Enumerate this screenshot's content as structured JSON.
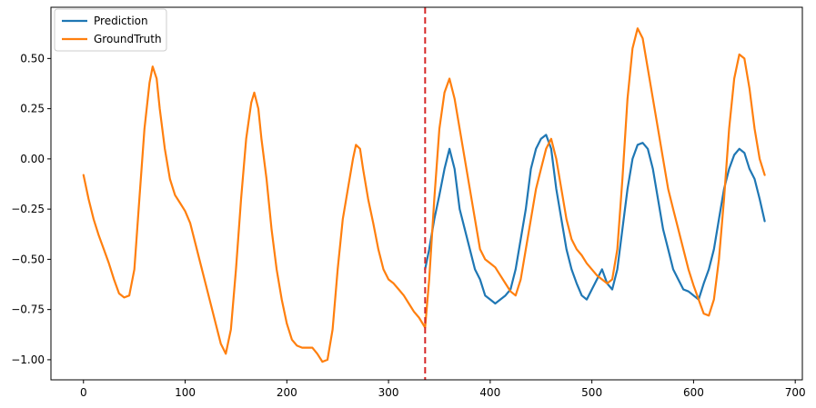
{
  "chart_data": {
    "type": "line",
    "title": "",
    "xlabel": "",
    "ylabel": "",
    "xlim": [
      -32,
      707
    ],
    "ylim": [
      -1.1,
      0.755
    ],
    "xticks": [
      0,
      100,
      200,
      300,
      400,
      500,
      600,
      700
    ],
    "yticks": [
      -1.0,
      -0.75,
      -0.5,
      -0.25,
      0.0,
      0.25,
      0.5
    ],
    "ytick_labels": [
      "−1.00",
      "−0.75",
      "−0.50",
      "−0.25",
      "0.00",
      "0.25",
      "0.50"
    ],
    "grid": false,
    "legend_position": "upper-left",
    "split_line": {
      "x": 336,
      "color": "#d62728",
      "style": "dashed"
    },
    "series": [
      {
        "name": "Prediction",
        "color": "#1f77b4",
        "x": [
          336,
          340,
          345,
          350,
          355,
          360,
          365,
          370,
          375,
          380,
          385,
          390,
          395,
          400,
          405,
          410,
          415,
          420,
          425,
          430,
          435,
          440,
          445,
          450,
          455,
          460,
          465,
          470,
          475,
          480,
          485,
          490,
          495,
          500,
          505,
          510,
          515,
          520,
          525,
          530,
          535,
          540,
          545,
          550,
          555,
          560,
          565,
          570,
          575,
          580,
          585,
          590,
          595,
          600,
          605,
          610,
          615,
          620,
          625,
          630,
          635,
          640,
          645,
          650,
          655,
          660,
          665,
          670
        ],
        "y": [
          -0.55,
          -0.45,
          -0.3,
          -0.18,
          -0.05,
          0.05,
          -0.05,
          -0.25,
          -0.35,
          -0.45,
          -0.55,
          -0.6,
          -0.68,
          -0.7,
          -0.72,
          -0.7,
          -0.68,
          -0.65,
          -0.55,
          -0.4,
          -0.25,
          -0.05,
          0.05,
          0.1,
          0.12,
          0.05,
          -0.15,
          -0.3,
          -0.45,
          -0.55,
          -0.62,
          -0.68,
          -0.7,
          -0.65,
          -0.6,
          -0.55,
          -0.62,
          -0.65,
          -0.55,
          -0.35,
          -0.15,
          0.0,
          0.07,
          0.08,
          0.05,
          -0.05,
          -0.2,
          -0.35,
          -0.45,
          -0.55,
          -0.6,
          -0.65,
          -0.66,
          -0.68,
          -0.7,
          -0.62,
          -0.55,
          -0.45,
          -0.3,
          -0.15,
          -0.05,
          0.02,
          0.05,
          0.03,
          -0.05,
          -0.1,
          -0.2,
          -0.31
        ]
      },
      {
        "name": "GroundTruth",
        "color": "#ff7f0e",
        "x": [
          0,
          5,
          10,
          15,
          20,
          25,
          30,
          35,
          40,
          45,
          50,
          55,
          60,
          65,
          68,
          72,
          75,
          80,
          85,
          90,
          95,
          100,
          105,
          110,
          115,
          120,
          125,
          130,
          135,
          140,
          145,
          150,
          155,
          160,
          165,
          168,
          172,
          175,
          180,
          185,
          190,
          195,
          200,
          205,
          210,
          215,
          220,
          225,
          230,
          235,
          240,
          245,
          250,
          255,
          260,
          265,
          268,
          272,
          275,
          280,
          285,
          290,
          295,
          300,
          305,
          310,
          315,
          320,
          325,
          330,
          336,
          340,
          345,
          350,
          355,
          360,
          365,
          370,
          375,
          380,
          385,
          390,
          395,
          400,
          405,
          410,
          415,
          420,
          425,
          430,
          435,
          440,
          445,
          450,
          455,
          460,
          465,
          470,
          475,
          480,
          485,
          490,
          495,
          500,
          505,
          510,
          515,
          520,
          525,
          530,
          535,
          540,
          545,
          550,
          555,
          560,
          565,
          570,
          575,
          580,
          585,
          590,
          595,
          600,
          605,
          610,
          615,
          620,
          625,
          630,
          635,
          640,
          645,
          650,
          655,
          660,
          665,
          670
        ],
        "y": [
          -0.08,
          -0.2,
          -0.3,
          -0.38,
          -0.45,
          -0.52,
          -0.6,
          -0.67,
          -0.69,
          -0.68,
          -0.55,
          -0.2,
          0.15,
          0.38,
          0.46,
          0.4,
          0.25,
          0.05,
          -0.1,
          -0.18,
          -0.22,
          -0.26,
          -0.32,
          -0.42,
          -0.52,
          -0.62,
          -0.72,
          -0.82,
          -0.92,
          -0.97,
          -0.85,
          -0.55,
          -0.2,
          0.1,
          0.28,
          0.33,
          0.25,
          0.1,
          -0.1,
          -0.35,
          -0.55,
          -0.7,
          -0.82,
          -0.9,
          -0.93,
          -0.94,
          -0.94,
          -0.94,
          -0.97,
          -1.01,
          -1.0,
          -0.85,
          -0.55,
          -0.3,
          -0.15,
          0.0,
          0.07,
          0.05,
          -0.05,
          -0.2,
          -0.32,
          -0.45,
          -0.55,
          -0.6,
          -0.62,
          -0.65,
          -0.68,
          -0.72,
          -0.76,
          -0.79,
          -0.84,
          -0.6,
          -0.2,
          0.15,
          0.33,
          0.4,
          0.3,
          0.15,
          0.0,
          -0.15,
          -0.3,
          -0.45,
          -0.5,
          -0.52,
          -0.54,
          -0.58,
          -0.62,
          -0.66,
          -0.68,
          -0.6,
          -0.45,
          -0.3,
          -0.15,
          -0.05,
          0.05,
          0.1,
          0.0,
          -0.15,
          -0.3,
          -0.4,
          -0.45,
          -0.48,
          -0.52,
          -0.55,
          -0.58,
          -0.6,
          -0.62,
          -0.6,
          -0.45,
          -0.1,
          0.3,
          0.55,
          0.65,
          0.6,
          0.45,
          0.3,
          0.15,
          0.0,
          -0.15,
          -0.25,
          -0.35,
          -0.45,
          -0.55,
          -0.63,
          -0.7,
          -0.77,
          -0.78,
          -0.7,
          -0.5,
          -0.2,
          0.15,
          0.4,
          0.52,
          0.5,
          0.35,
          0.15,
          0.0,
          -0.08
        ]
      }
    ]
  }
}
